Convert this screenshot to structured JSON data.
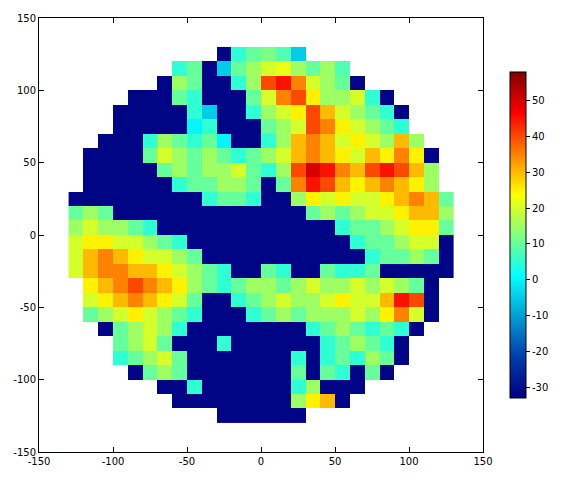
{
  "chart_data": {
    "type": "heatmap",
    "color": "Jet",
    "grid": false,
    "xlim": [
      -150,
      150
    ],
    "ylim": [
      -150,
      150
    ],
    "xticks": [
      -150,
      -100,
      -50,
      0,
      50,
      100,
      150
    ],
    "yticks": [
      -150,
      -100,
      -50,
      0,
      50,
      100,
      150
    ],
    "colorbar_range": [
      -33,
      58
    ],
    "colorbar_ticks": [
      -30,
      -20,
      -10,
      0,
      10,
      20,
      30,
      40,
      50
    ],
    "x": [
      -125,
      -115,
      -105,
      -95,
      -85,
      -75,
      -65,
      -55,
      -45,
      -35,
      -25,
      -15,
      -5,
      5,
      15,
      25,
      35,
      45,
      55,
      65,
      75,
      85,
      95,
      105,
      115,
      125
    ],
    "y": [
      -125,
      -115,
      -105,
      -95,
      -85,
      -75,
      -65,
      -55,
      -45,
      -35,
      -25,
      -15,
      -5,
      5,
      15,
      25,
      35,
      45,
      55,
      65,
      75,
      85,
      95,
      105,
      115,
      125
    ],
    "cells": [
      [
        null,
        null,
        null,
        null,
        null,
        null,
        null,
        null,
        null,
        null,
        -32,
        -32,
        -32,
        -32,
        -32,
        -32,
        null,
        null,
        null,
        null,
        null,
        null,
        null,
        null,
        null,
        null
      ],
      [
        null,
        null,
        null,
        null,
        null,
        null,
        null,
        -32,
        -32,
        -32,
        -32,
        -32,
        -32,
        -32,
        -32,
        15,
        25,
        30,
        -32,
        null,
        null,
        null,
        null,
        null,
        null,
        null
      ],
      [
        null,
        null,
        null,
        null,
        null,
        null,
        -32,
        -32,
        5,
        -32,
        -32,
        -32,
        -32,
        -32,
        -32,
        5,
        15,
        -32,
        -32,
        -32,
        null,
        null,
        null,
        null,
        null,
        null
      ],
      [
        null,
        null,
        null,
        null,
        -32,
        10,
        15,
        10,
        -32,
        -32,
        -32,
        -32,
        -32,
        -32,
        -32,
        10,
        -32,
        10,
        5,
        -32,
        10,
        -32,
        null,
        null,
        null,
        null
      ],
      [
        null,
        null,
        null,
        5,
        10,
        15,
        20,
        10,
        -32,
        -32,
        -32,
        -32,
        -32,
        -32,
        -32,
        5,
        -32,
        5,
        10,
        5,
        15,
        10,
        -32,
        null,
        null,
        null
      ],
      [
        null,
        null,
        null,
        10,
        15,
        20,
        10,
        -32,
        -32,
        -32,
        5,
        -32,
        -32,
        -32,
        -32,
        -32,
        -32,
        5,
        10,
        15,
        10,
        5,
        -32,
        null,
        null,
        null
      ],
      [
        null,
        null,
        -32,
        10,
        15,
        20,
        15,
        5,
        -32,
        -32,
        -32,
        -32,
        -32,
        -32,
        -32,
        -32,
        5,
        10,
        15,
        10,
        5,
        10,
        5,
        -32,
        null,
        null
      ],
      [
        null,
        10,
        15,
        20,
        25,
        20,
        15,
        10,
        5,
        -32,
        -32,
        -32,
        5,
        10,
        15,
        10,
        15,
        15,
        15,
        20,
        15,
        25,
        35,
        20,
        -32,
        null
      ],
      [
        null,
        20,
        25,
        30,
        35,
        30,
        25,
        20,
        10,
        -32,
        -32,
        5,
        10,
        15,
        20,
        15,
        15,
        20,
        25,
        20,
        20,
        30,
        45,
        40,
        -32,
        null
      ],
      [
        null,
        25,
        30,
        35,
        40,
        35,
        30,
        25,
        15,
        10,
        5,
        10,
        15,
        15,
        10,
        15,
        20,
        15,
        15,
        20,
        15,
        20,
        15,
        10,
        -32,
        null
      ],
      [
        20,
        30,
        35,
        35,
        30,
        30,
        25,
        20,
        15,
        10,
        5,
        -32,
        -32,
        10,
        5,
        -32,
        -32,
        10,
        5,
        5,
        10,
        -32,
        -32,
        -32,
        -32,
        -32
      ],
      [
        20,
        30,
        35,
        30,
        25,
        20,
        20,
        15,
        10,
        -32,
        -32,
        -32,
        -32,
        -32,
        -32,
        -32,
        -32,
        -32,
        -32,
        -32,
        5,
        10,
        10,
        15,
        10,
        -32
      ],
      [
        20,
        25,
        25,
        20,
        20,
        15,
        10,
        5,
        -32,
        -32,
        -32,
        -32,
        -32,
        -32,
        -32,
        -32,
        -32,
        -32,
        -32,
        5,
        10,
        10,
        15,
        20,
        20,
        -32
      ],
      [
        15,
        20,
        15,
        15,
        10,
        5,
        -32,
        -32,
        -32,
        -32,
        -32,
        -32,
        -32,
        -32,
        -32,
        -32,
        -32,
        -32,
        5,
        10,
        10,
        15,
        20,
        25,
        25,
        10
      ],
      [
        10,
        15,
        10,
        -32,
        -32,
        -32,
        -32,
        -32,
        -32,
        -32,
        -32,
        -32,
        -32,
        -32,
        -32,
        -32,
        10,
        15,
        10,
        15,
        20,
        20,
        25,
        30,
        30,
        15
      ],
      [
        -32,
        -32,
        -32,
        -32,
        -32,
        -32,
        -32,
        -32,
        -32,
        5,
        10,
        10,
        5,
        -32,
        -32,
        15,
        25,
        20,
        25,
        20,
        20,
        25,
        30,
        35,
        30,
        10
      ],
      [
        null,
        -32,
        -32,
        -32,
        -32,
        -32,
        -32,
        5,
        10,
        10,
        15,
        15,
        10,
        -32,
        10,
        35,
        45,
        40,
        30,
        25,
        30,
        35,
        30,
        25,
        15,
        null
      ],
      [
        null,
        -32,
        -32,
        -32,
        -32,
        -32,
        10,
        15,
        10,
        15,
        15,
        20,
        10,
        5,
        15,
        40,
        50,
        45,
        35,
        30,
        40,
        45,
        40,
        30,
        15,
        null
      ],
      [
        null,
        -32,
        -32,
        -32,
        -32,
        10,
        20,
        15,
        10,
        15,
        10,
        5,
        10,
        15,
        20,
        30,
        35,
        30,
        25,
        20,
        30,
        25,
        35,
        25,
        -32,
        null
      ],
      [
        null,
        null,
        -32,
        -32,
        -32,
        5,
        15,
        10,
        5,
        10,
        0,
        -32,
        -32,
        5,
        15,
        30,
        35,
        30,
        20,
        25,
        20,
        15,
        30,
        15,
        null,
        null
      ],
      [
        null,
        null,
        null,
        -32,
        -32,
        -32,
        -32,
        -32,
        0,
        5,
        -32,
        -32,
        -32,
        10,
        15,
        20,
        40,
        35,
        25,
        20,
        15,
        10,
        5,
        null,
        null,
        null
      ],
      [
        null,
        null,
        null,
        -32,
        -32,
        -32,
        -32,
        -32,
        5,
        -5,
        -32,
        -32,
        5,
        15,
        20,
        25,
        40,
        30,
        20,
        15,
        10,
        5,
        -32,
        null,
        null,
        null
      ],
      [
        null,
        null,
        null,
        null,
        -32,
        -32,
        -32,
        10,
        5,
        -32,
        -32,
        -32,
        10,
        20,
        35,
        40,
        25,
        15,
        15,
        20,
        5,
        -32,
        null,
        null,
        null,
        null
      ],
      [
        null,
        null,
        null,
        null,
        null,
        null,
        -32,
        15,
        10,
        -32,
        -32,
        5,
        15,
        40,
        45,
        35,
        20,
        15,
        10,
        -32,
        null,
        null,
        null,
        null,
        null,
        null
      ],
      [
        null,
        null,
        null,
        null,
        null,
        null,
        null,
        5,
        10,
        -32,
        -5,
        10,
        15,
        20,
        22,
        15,
        10,
        15,
        8,
        null,
        null,
        null,
        null,
        null,
        null,
        null
      ],
      [
        null,
        null,
        null,
        null,
        null,
        null,
        null,
        null,
        null,
        null,
        -32,
        5,
        10,
        12,
        8,
        -5,
        null,
        null,
        null,
        null,
        null,
        null,
        null,
        null,
        null,
        null
      ]
    ]
  }
}
